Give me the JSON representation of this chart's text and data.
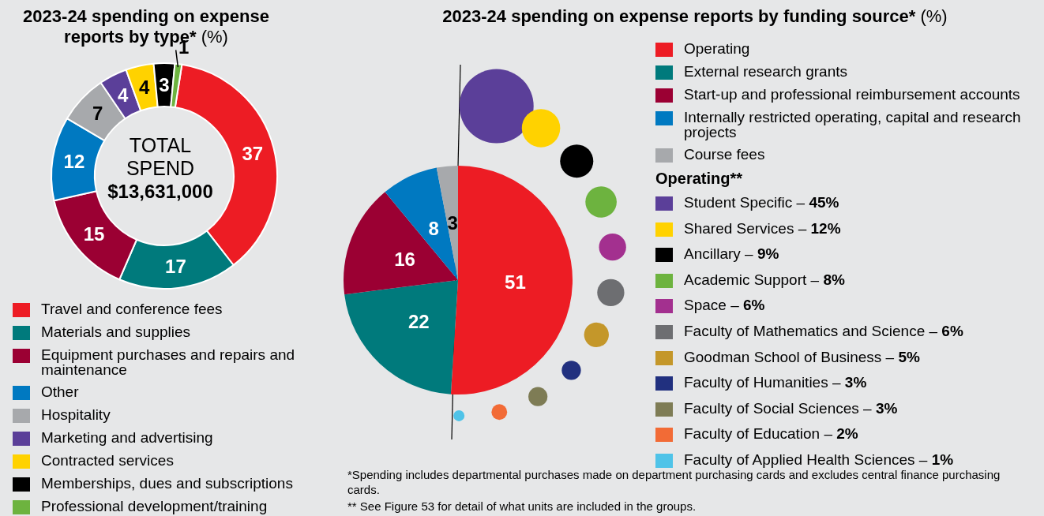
{
  "chart_data": [
    {
      "type": "donut",
      "title": "2023-24 spending on expense reports by type*",
      "subtitle": "(%)",
      "categories": [
        "Travel and conference fees",
        "Materials and supplies",
        "Equipment purchases and repairs and maintenance",
        "Other",
        "Hospitality",
        "Marketing and advertising",
        "Contracted services",
        "Memberships, dues and subscriptions",
        "Professional development/training"
      ],
      "values": [
        37,
        17,
        15,
        12,
        7,
        4,
        4,
        3,
        1
      ],
      "colors": [
        "#ed1c24",
        "#007a7c",
        "#9b0033",
        "#0079c1",
        "#a7a9ac",
        "#5b3f99",
        "#ffd200",
        "#000000",
        "#6db33f"
      ],
      "data_labels": true,
      "legend": "bottom",
      "annotations": [
        "TOTAL SPEND",
        "$13,631,000"
      ]
    },
    {
      "type": "pie",
      "title": "2023-24 spending on expense reports by funding source*",
      "subtitle": "(%)",
      "categories": [
        "Operating",
        "External research grants",
        "Start-up and professional reimbursement accounts",
        "Internally restricted operating, capital and research projects",
        "Course fees"
      ],
      "values": [
        51,
        22,
        16,
        8,
        3
      ],
      "colors": [
        "#ed1c24",
        "#007a7c",
        "#9b0033",
        "#0079c1",
        "#a7a9ac"
      ],
      "data_labels": true,
      "legend": "top right",
      "annotations": [
        "*Spending includes departmental purchases made on department purchasing cards and excludes central finance purchasing cards.",
        "** See Figure 53 for detail of what units are included in the groups."
      ]
    },
    {
      "type": "other",
      "legend_title": "Operating**",
      "categories": [
        "Student Specific –",
        "Shared Services –",
        "Ancillary –",
        "Academic Support –",
        "Space –",
        "Faculty of Mathematics and Science –",
        "Goodman School of Business –",
        "Faculty of Humanities –",
        "Faculty of Social Sciences –",
        "Faculty of Education –",
        "Faculty of Applied Health Sciences –"
      ],
      "values": [
        45,
        12,
        9,
        8,
        6,
        6,
        5,
        3,
        3,
        2,
        1
      ],
      "value_labels": [
        "45%",
        "12%",
        "9%",
        "8%",
        "6%",
        "6%",
        "5%",
        "3%",
        "3%",
        "2%",
        "1%"
      ],
      "colors": [
        "#5b3f99",
        "#ffd200",
        "#000000",
        "#6db33f",
        "#a3308f",
        "#6d6e71",
        "#c4972a",
        "#21307f",
        "#7e7c55",
        "#f26b36",
        "#4fc3e8"
      ]
    }
  ]
}
